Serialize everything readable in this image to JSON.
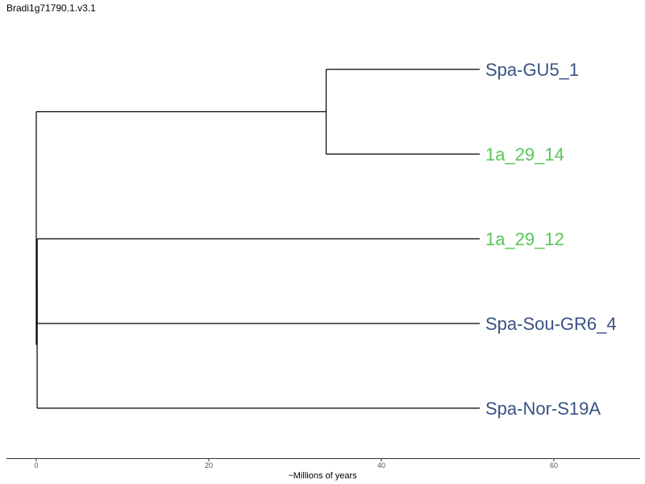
{
  "chart_data": {
    "type": "dendrogram",
    "title": "Bradi1g71790.1.v3.1",
    "xlabel": "~Millions of years",
    "xlim": [
      -3.5,
      70
    ],
    "ticks": [
      0,
      20,
      40,
      60
    ],
    "tick_labels": [
      "0",
      "20",
      "40",
      "60"
    ],
    "grid": false,
    "colors": {
      "group_blue": "#3b5185",
      "group_green": "#58c658",
      "branch": "#000000"
    },
    "nodes": [
      {
        "id": "root",
        "x": 0
      },
      {
        "id": "n_upper",
        "x": 0,
        "parent": "root"
      },
      {
        "id": "n_inner",
        "x": 33.6,
        "parent": "n_upper"
      },
      {
        "id": "n_lower",
        "x": 0.1,
        "parent": "root"
      },
      {
        "id": "n_lower2",
        "x": 0.1,
        "parent": "n_lower"
      }
    ],
    "leaves": [
      {
        "label": "Spa-GU5_1",
        "x": 51.4,
        "parent": "n_inner",
        "color": "#3b5185"
      },
      {
        "label": "1a_29_14",
        "x": 51.4,
        "parent": "n_inner",
        "color": "#58c658"
      },
      {
        "label": "1a_29_12",
        "x": 51.4,
        "parent": "n_lower2",
        "color": "#58c658"
      },
      {
        "label": "Spa-Sou-GR6_4",
        "x": 51.4,
        "parent": "n_lower2",
        "color": "#3b5185"
      },
      {
        "label": "Spa-Nor-S19A",
        "x": 51.4,
        "parent": "n_lower",
        "color": "#3b5185"
      }
    ]
  }
}
